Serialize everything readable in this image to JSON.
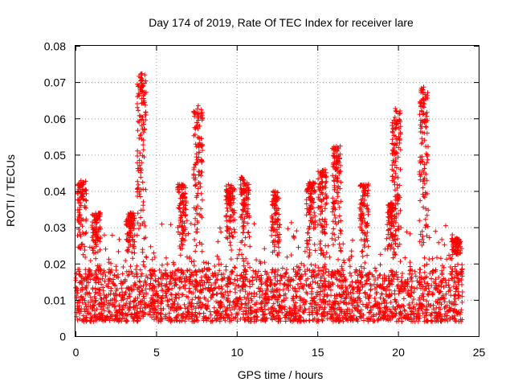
{
  "chart_data": {
    "type": "scatter",
    "title": "Day 174 of 2019, Rate Of TEC Index for receiver lare",
    "xlabel": "GPS time / hours",
    "ylabel": "ROTI / TECUs",
    "xlim": [
      0,
      25
    ],
    "ylim": [
      0,
      0.08
    ],
    "x_ticks": [
      "0",
      "5",
      "10",
      "15",
      "20",
      "25"
    ],
    "y_ticks": [
      "0",
      "0.01",
      "0.02",
      "0.03",
      "0.04",
      "0.05",
      "0.06",
      "0.07",
      "0.08"
    ],
    "grid": true,
    "marker": "+",
    "color": "#ff0000",
    "data_range_x": [
      0,
      24
    ],
    "baseline_band": [
      0.004,
      0.022
    ],
    "peaks": [
      {
        "x": 0.4,
        "y": 0.043
      },
      {
        "x": 1.3,
        "y": 0.034
      },
      {
        "x": 3.4,
        "y": 0.034
      },
      {
        "x": 4.1,
        "y": 0.073
      },
      {
        "x": 6.6,
        "y": 0.042
      },
      {
        "x": 7.6,
        "y": 0.064
      },
      {
        "x": 9.6,
        "y": 0.042
      },
      {
        "x": 10.5,
        "y": 0.044
      },
      {
        "x": 12.4,
        "y": 0.04
      },
      {
        "x": 14.6,
        "y": 0.043
      },
      {
        "x": 15.3,
        "y": 0.046
      },
      {
        "x": 16.2,
        "y": 0.053
      },
      {
        "x": 17.9,
        "y": 0.042
      },
      {
        "x": 19.6,
        "y": 0.037
      },
      {
        "x": 19.9,
        "y": 0.063
      },
      {
        "x": 21.6,
        "y": 0.069
      },
      {
        "x": 23.6,
        "y": 0.027
      }
    ]
  }
}
